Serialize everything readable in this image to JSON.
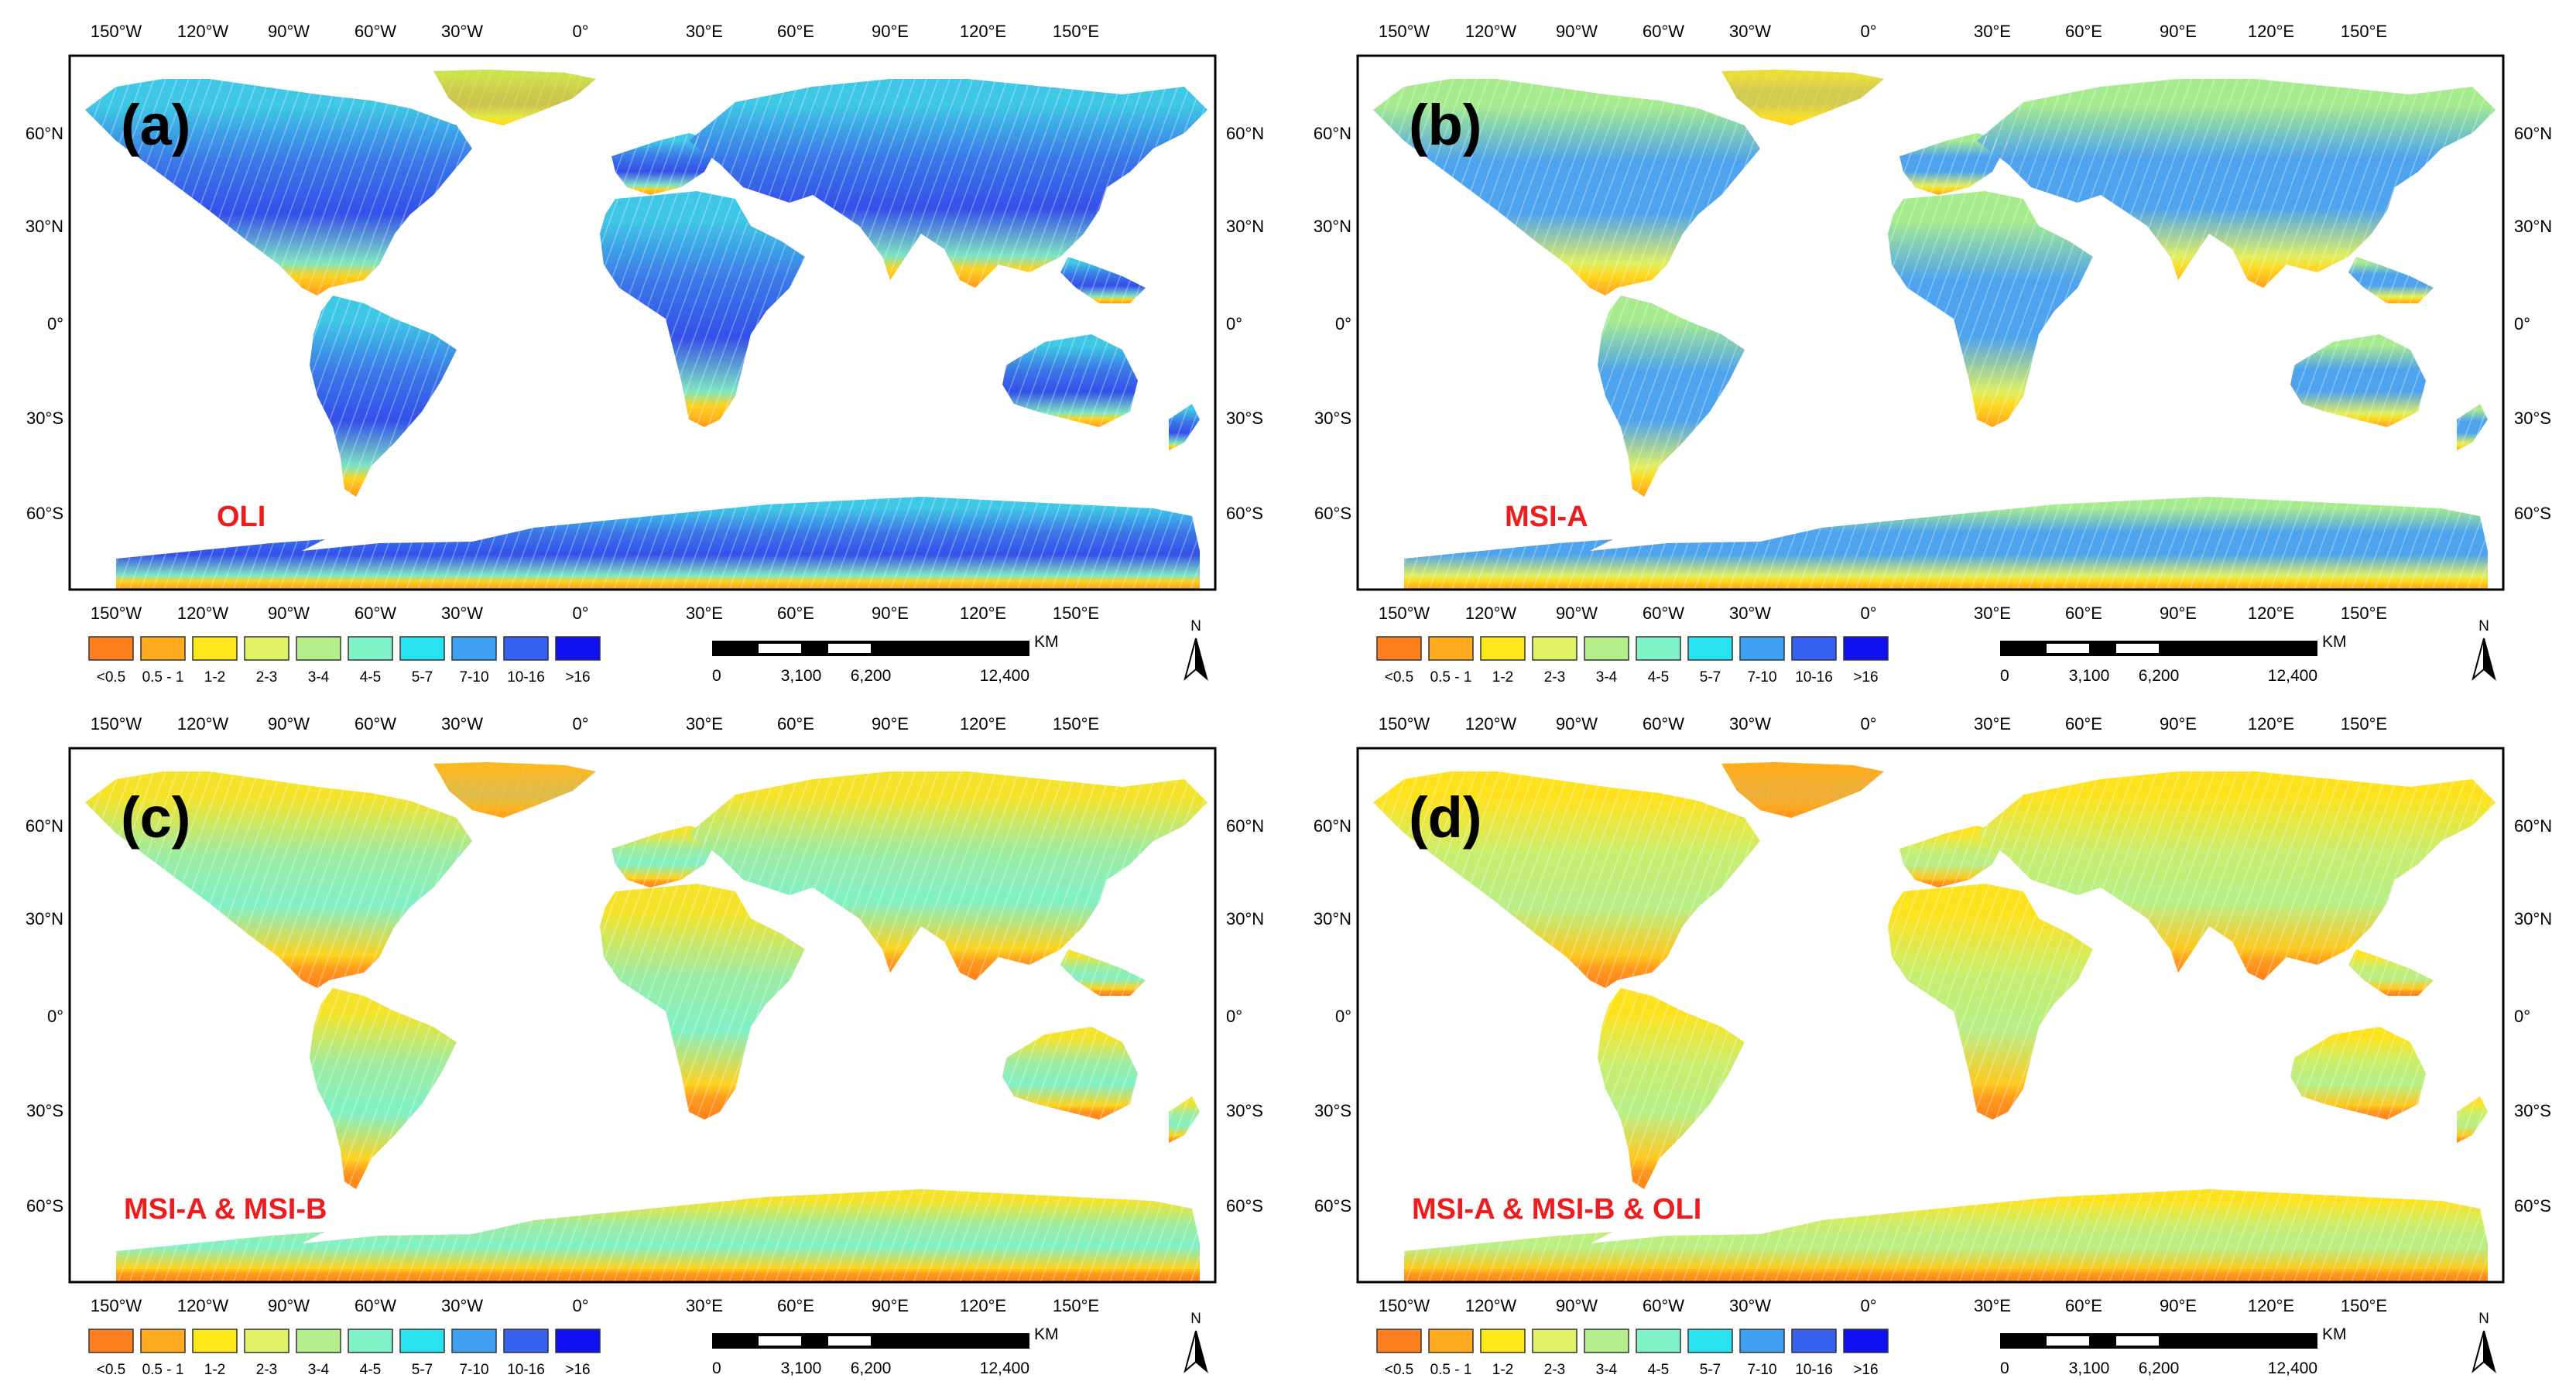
{
  "top_labels": [
    "150°W",
    "120°W",
    "90°W",
    "60°W",
    "30°W",
    "0°",
    "30°E",
    "60°E",
    "90°E",
    "120°E",
    "150°E"
  ],
  "bottom_labels": [
    "150°W",
    "120°W",
    "90°W",
    "60°W",
    "30°W",
    "0°",
    "30°E",
    "60°E",
    "90°E",
    "120°E",
    "150°E"
  ],
  "lat_labels": [
    "60°N",
    "30°N",
    "0°",
    "30°S",
    "60°S"
  ],
  "legend": {
    "classes": [
      "<0.5",
      "0.5 - 1",
      "1-2",
      "2-3",
      "3-4",
      "4-5",
      "5-7",
      "7-10",
      "10-16",
      ">16"
    ],
    "colors": [
      "#ff7f1f",
      "#ffaa1f",
      "#ffe81a",
      "#e2f266",
      "#b5ef8c",
      "#7ff2c8",
      "#27e3ef",
      "#3f9ff0",
      "#3560f0",
      "#1010f0"
    ]
  },
  "scalebar": {
    "labels": [
      "0",
      "3,100",
      "6,200",
      "12,400"
    ],
    "unit": "KM"
  },
  "north": "N",
  "panels": [
    {
      "tag": "(a)",
      "sensor": "OLI",
      "colors": {
        "north": "#3fc8e6",
        "mid": "#3a78e8",
        "south": "#3350ea",
        "ant1": "#ffd21e",
        "ant2": "#ff9a1e",
        "ant3": "#7fe6c0",
        "green": "#ffe81a"
      }
    },
    {
      "tag": "(b)",
      "sensor": "MSI-A",
      "colors": {
        "north": "#a6ec8e",
        "mid": "#4ea3ee",
        "south": "#4ea3ee",
        "ant1": "#ffd81e",
        "ant2": "#ffa01e",
        "ant3": "#e0ef60",
        "green": "#ffd81e"
      }
    },
    {
      "tag": "(c)",
      "sensor": "MSI-A & MSI-B",
      "colors": {
        "north": "#f4e32a",
        "mid": "#9eeca0",
        "south": "#80f0c6",
        "ant1": "#ff9a1e",
        "ant2": "#ff7f1a",
        "ant3": "#ffd21e",
        "green": "#ffaa1f"
      }
    },
    {
      "tag": "(d)",
      "sensor": "MSI-A & MSI-B & OLI",
      "colors": {
        "north": "#ffe21e",
        "mid": "#c9ee6e",
        "south": "#b8ef88",
        "ant1": "#ff9a1e",
        "ant2": "#ff7f1a",
        "ant3": "#ffc81e",
        "green": "#ff9a1e"
      }
    }
  ]
}
